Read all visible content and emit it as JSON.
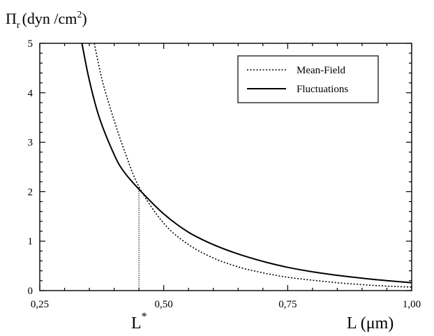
{
  "chart_data": {
    "type": "line",
    "title_main": "Π",
    "title_sub": "r",
    "title_units": "(dyn /cm",
    "title_sup": "2",
    "title_close": ")",
    "xlabel": "L (μm)",
    "marker_label": "L",
    "marker_sup": "*",
    "marker_x": 0.45,
    "xlim": [
      0.25,
      1.0
    ],
    "ylim": [
      0,
      5
    ],
    "x_ticks": [
      0.25,
      0.5,
      0.75,
      1.0
    ],
    "x_tick_labels": [
      "0,25",
      "0,50",
      "0,75",
      "1,00"
    ],
    "y_ticks": [
      0,
      1,
      2,
      3,
      4,
      5
    ],
    "y_tick_labels": [
      "0",
      "1",
      "2",
      "3",
      "4",
      "5"
    ],
    "legend_position": "top-right",
    "grid": false,
    "series": [
      {
        "name": "Mean-Field",
        "style": "dotted",
        "x": [
          0.36,
          0.37,
          0.38,
          0.4,
          0.42,
          0.45,
          0.5,
          0.55,
          0.6,
          0.65,
          0.7,
          0.75,
          0.8,
          0.85,
          0.9,
          0.95,
          1.0
        ],
        "y": [
          5.0,
          4.51,
          4.1,
          3.44,
          2.85,
          2.1,
          1.36,
          0.93,
          0.66,
          0.48,
          0.36,
          0.27,
          0.21,
          0.16,
          0.12,
          0.09,
          0.07
        ]
      },
      {
        "name": "Fluctuations",
        "style": "solid",
        "x": [
          0.335,
          0.35,
          0.37,
          0.4,
          0.42,
          0.45,
          0.5,
          0.55,
          0.6,
          0.65,
          0.7,
          0.75,
          0.8,
          0.85,
          0.9,
          0.95,
          1.0
        ],
        "y": [
          5.0,
          4.25,
          3.5,
          2.75,
          2.4,
          2.05,
          1.55,
          1.18,
          0.93,
          0.74,
          0.59,
          0.47,
          0.38,
          0.31,
          0.25,
          0.2,
          0.16
        ]
      }
    ]
  }
}
